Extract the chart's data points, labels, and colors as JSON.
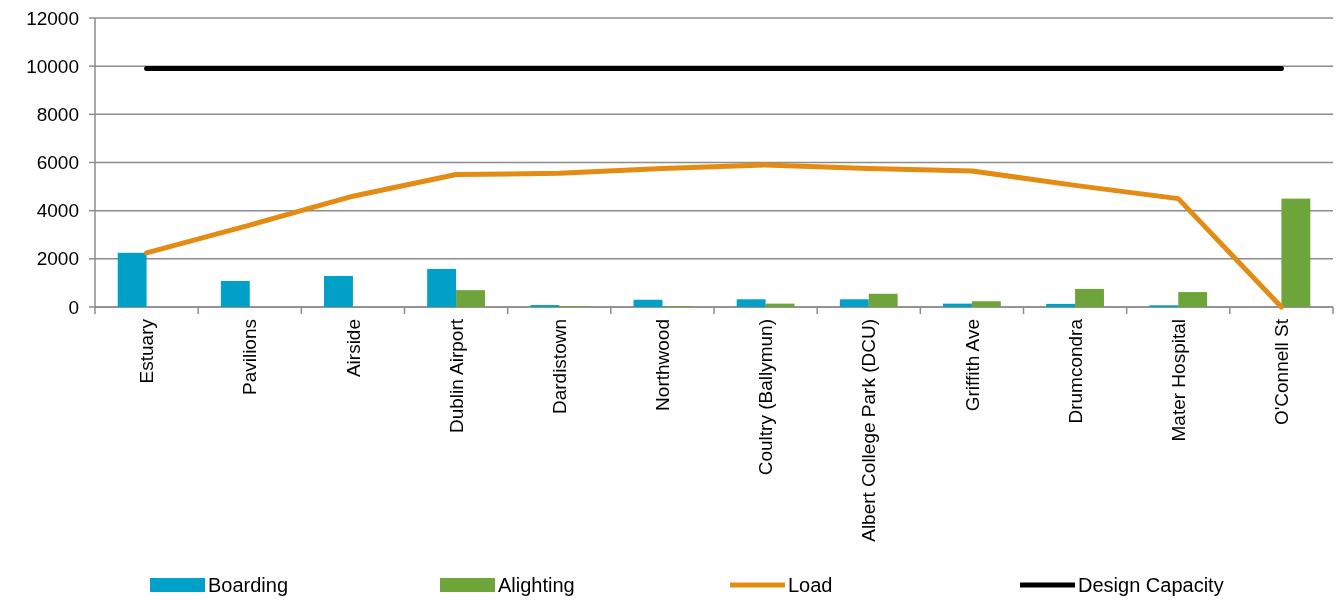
{
  "chart_data": {
    "type": "bar",
    "categories": [
      "Estuary",
      "Pavilions",
      "Airside",
      "Dublin Airport",
      "Dardistown",
      "Northwood",
      "Coultry (Ballymun)",
      "Albert College Park (DCU)",
      "Griffith Ave",
      "Drumcondra",
      "Mater Hospital",
      "O'Connell St"
    ],
    "series": [
      {
        "name": "Boarding",
        "color": "#00a0c8",
        "values": [
          2250,
          1080,
          1290,
          1580,
          80,
          300,
          320,
          320,
          140,
          130,
          70,
          0
        ]
      },
      {
        "name": "Alighting",
        "color": "#6ea53a",
        "values": [
          0,
          0,
          0,
          700,
          40,
          40,
          140,
          550,
          240,
          750,
          620,
          4500
        ]
      },
      {
        "name": "Load",
        "type": "line",
        "color": "#e38b12",
        "values": [
          2250,
          3400,
          4600,
          5500,
          5550,
          5750,
          5900,
          5750,
          5650,
          5050,
          4500,
          0
        ]
      },
      {
        "name": "Design Capacity",
        "type": "line",
        "color": "#000000",
        "values": [
          9900,
          9900,
          9900,
          9900,
          9900,
          9900,
          9900,
          9900,
          9900,
          9900,
          9900,
          9900
        ]
      }
    ],
    "ylim": [
      0,
      12000
    ],
    "yticks": [
      0,
      2000,
      4000,
      6000,
      8000,
      10000,
      12000
    ],
    "grid": "y",
    "legend": "bottom"
  }
}
